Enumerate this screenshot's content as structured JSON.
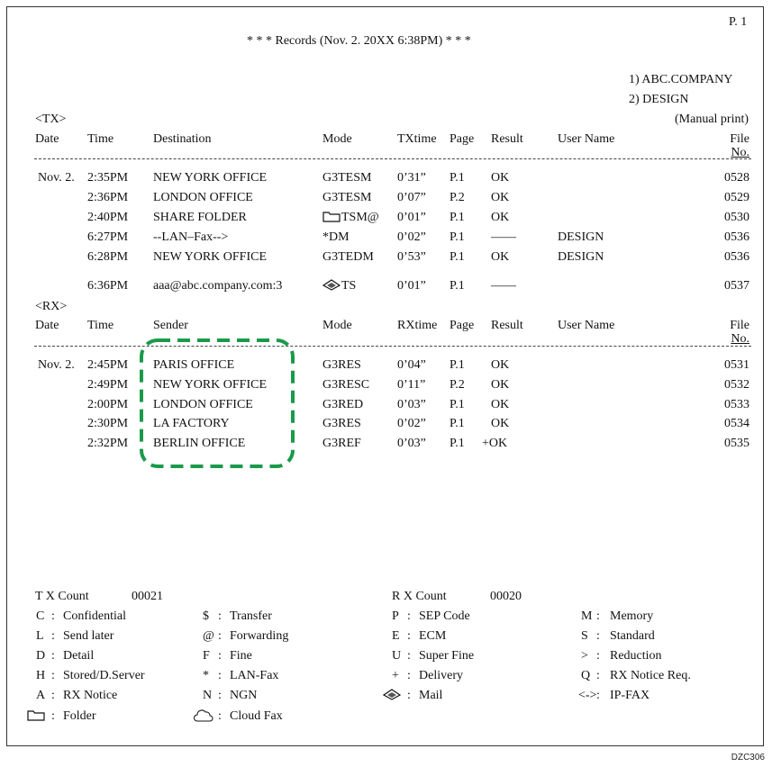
{
  "page": "P.  1",
  "title": "*   *   *   Records  (Nov. 2. 20XX 6:38PM)   *   *   *",
  "recipients": [
    "1)   ABC.COMPANY",
    "2)   DESIGN"
  ],
  "manual_print": "(Manual print)",
  "tx": {
    "label": "<TX>",
    "headers": [
      "Date",
      "Time",
      "Destination",
      "Mode",
      "TXtime",
      "Page",
      "Result",
      "User Name",
      "File",
      "No."
    ],
    "rows": [
      {
        "date": "Nov. 2.",
        "time": "2:35PM",
        "dest": "NEW YORK OFFICE",
        "mode": "G3TESM",
        "txtime": "0’31”",
        "page": "P.1",
        "result": "OK",
        "user": "",
        "file": "0528"
      },
      {
        "date": "",
        "time": "2:36PM",
        "dest": "LONDON OFFICE",
        "mode": "G3TESM",
        "txtime": "0’07”",
        "page": "P.2",
        "result": "OK",
        "user": "",
        "file": "0529"
      },
      {
        "date": "",
        "time": "2:40PM",
        "dest": "SHARE FOLDER",
        "mode": "TSM@",
        "mode_icon": "folder-icon",
        "txtime": "0’01”",
        "page": "P.1",
        "result": "OK",
        "user": "",
        "file": "0530"
      },
      {
        "date": "",
        "time": "6:27PM",
        "dest": "--LAN–Fax-->",
        "mode": "*DM",
        "txtime": "0’02”",
        "page": "P.1",
        "result": "——",
        "user": "DESIGN",
        "file": "0536"
      },
      {
        "date": "",
        "time": "6:28PM",
        "dest": "NEW YORK OFFICE",
        "mode": "G3TEDM",
        "txtime": "0’53”",
        "page": "P.1",
        "result": "OK",
        "user": "DESIGN",
        "file": "0536"
      },
      {
        "date": "",
        "time": "6:36PM",
        "dest": "aaa@abc.company.com:3",
        "mode": "TS",
        "mode_icon": "mail-icon",
        "txtime": "0’01”",
        "page": "P.1",
        "result": "——",
        "user": "",
        "file": "0537"
      }
    ]
  },
  "rx": {
    "label": "<RX>",
    "headers": [
      "Date",
      "Time",
      "Sender",
      "Mode",
      "RXtime",
      "Page",
      "Result",
      "User Name",
      "File",
      "No."
    ],
    "rows": [
      {
        "date": "Nov. 2.",
        "time": "2:45PM",
        "dest": "PARIS OFFICE",
        "mode": "G3RES",
        "txtime": "0’04”",
        "page": "P.1",
        "result": "OK",
        "user": "",
        "file": "0531"
      },
      {
        "date": "",
        "time": "2:49PM",
        "dest": "NEW YORK OFFICE",
        "mode": "G3RESC",
        "txtime": "0’11”",
        "page": "P.2",
        "result": "OK",
        "user": "",
        "file": "0532"
      },
      {
        "date": "",
        "time": "2:00PM",
        "dest": "LONDON OFFICE",
        "mode": "G3RED",
        "txtime": "0’03”",
        "page": "P.1",
        "result": "OK",
        "user": "",
        "file": "0533"
      },
      {
        "date": "",
        "time": "2:30PM",
        "dest": "LA FACTORY",
        "mode": "G3RES",
        "txtime": "0’02”",
        "page": "P.1",
        "result": "OK",
        "user": "",
        "file": "0534"
      },
      {
        "date": "",
        "time": "2:32PM",
        "dest": "BERLIN OFFICE",
        "mode": "G3REF",
        "txtime": "0’03”",
        "page": "P.1",
        "result": "+OK",
        "user": "",
        "file": "0535"
      }
    ],
    "highlight_color": "#1a9a4a"
  },
  "counts": {
    "tx_label": "T X  Count",
    "tx_value": "00021",
    "rx_label": "R X  Count",
    "rx_value": "00020"
  },
  "legend": [
    [
      {
        "k": "C",
        "v": "Confidential"
      },
      {
        "k": "L",
        "v": "Send later"
      },
      {
        "k": "D",
        "v": "Detail"
      },
      {
        "k": "H",
        "v": "Stored/D.Server"
      },
      {
        "k": "A",
        "v": "RX Notice"
      },
      {
        "k": "",
        "icon": "folder-icon",
        "v": "Folder"
      }
    ],
    [
      {
        "k": "$",
        "v": "Transfer"
      },
      {
        "k": "@",
        "v": "Forwarding"
      },
      {
        "k": "F",
        "v": "Fine"
      },
      {
        "k": "*",
        "v": "LAN-Fax"
      },
      {
        "k": "N",
        "v": "NGN"
      },
      {
        "k": "",
        "icon": "cloud-icon",
        "v": "Cloud Fax"
      }
    ],
    [
      {
        "k": "P",
        "v": "SEP Code"
      },
      {
        "k": "E",
        "v": "ECM"
      },
      {
        "k": "U",
        "v": "Super Fine"
      },
      {
        "k": "+",
        "v": "Delivery"
      },
      {
        "k": "",
        "icon": "mail-icon",
        "v": "Mail"
      }
    ],
    [
      {
        "k": "M",
        "v": "Memory"
      },
      {
        "k": "S",
        "v": "Standard"
      },
      {
        "k": ">",
        "v": "Reduction"
      },
      {
        "k": "Q",
        "v": "RX Notice Req."
      },
      {
        "k": "<->",
        "v": "IP-FAX"
      }
    ]
  ],
  "figure_code": "DZC306"
}
